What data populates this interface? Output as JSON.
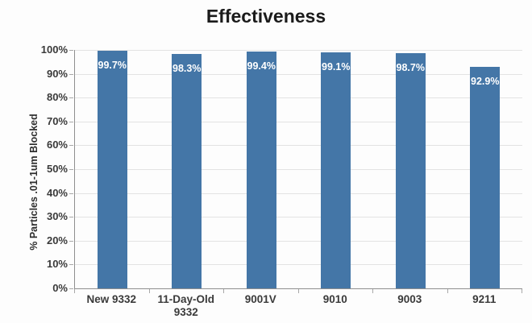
{
  "chart": {
    "title": "Effectiveness",
    "ylabel": "% Particles .01-1um Blocked"
  },
  "chart_data": {
    "type": "bar",
    "title": "Effectiveness",
    "xlabel": "",
    "ylabel": "% Particles .01-1um Blocked",
    "categories": [
      "New 9332",
      "11-Day-Old 9332",
      "9001V",
      "9010",
      "9003",
      "9211"
    ],
    "values": [
      99.7,
      98.3,
      99.4,
      99.1,
      98.7,
      92.9
    ],
    "bar_labels": [
      "99.7%",
      "98.3%",
      "99.4%",
      "99.1%",
      "98.7%",
      "92.9%"
    ],
    "y_ticks": [
      "100%",
      "90%",
      "80%",
      "70%",
      "60%",
      "50%",
      "40%",
      "30%",
      "20%",
      "10%",
      "0%"
    ],
    "ylim": [
      0,
      100
    ],
    "grid": true,
    "legend": false,
    "bar_color": "#4476a7",
    "bar_label_color": "#ffffff"
  }
}
